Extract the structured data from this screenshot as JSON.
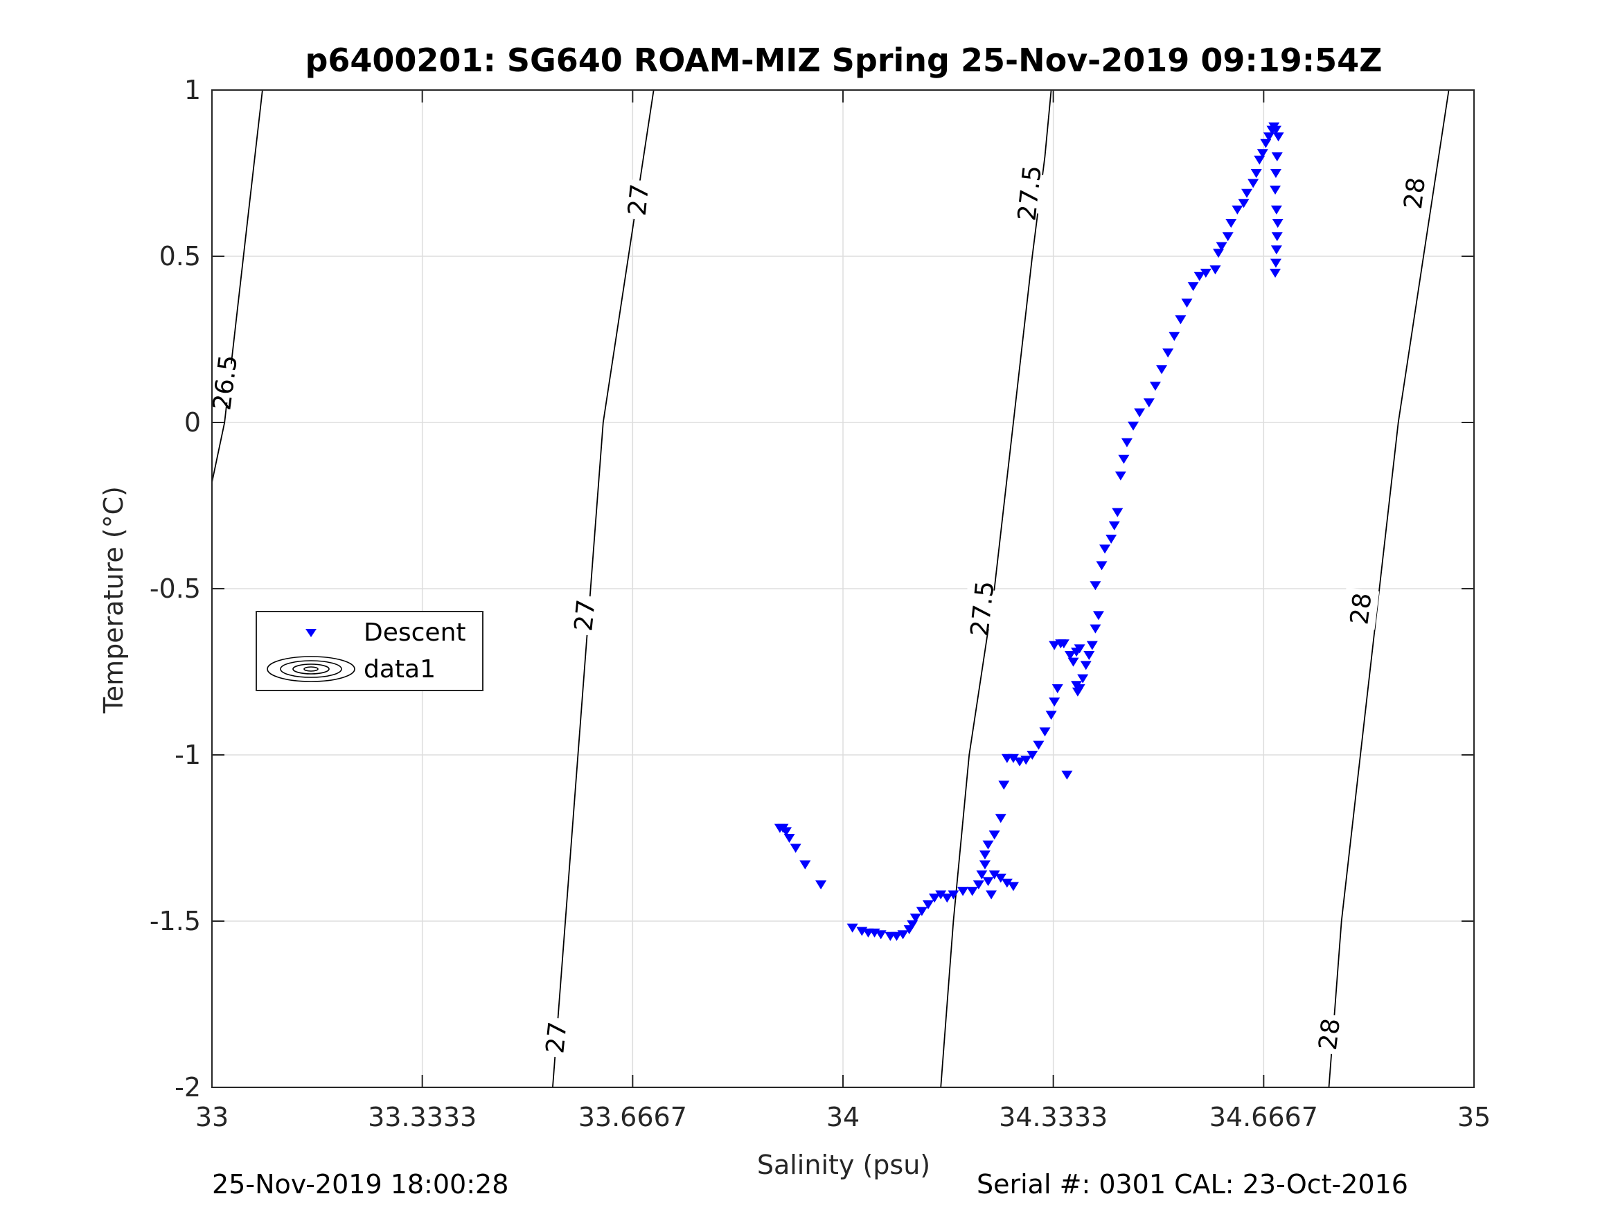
{
  "chart_data": {
    "type": "scatter",
    "title": "p6400201: SG640 ROAM-MIZ Spring 25-Nov-2019 09:19:54Z",
    "xlabel": "Salinity (psu)",
    "ylabel": "Temperature (°C)",
    "xlim": [
      33,
      35
    ],
    "ylim": [
      -2,
      1
    ],
    "x_tick_labels": [
      "33",
      "33.3333",
      "33.6667",
      "34",
      "34.3333",
      "34.6667",
      "35"
    ],
    "y_tick_labels": [
      "-2",
      "-1.5",
      "-1",
      "-0.5",
      "0",
      "0.5",
      "1"
    ],
    "grid": true,
    "legend": {
      "placement": "left-middle",
      "entries": [
        "Descent",
        "data1"
      ]
    },
    "colors": {
      "descent": "#0000ff",
      "contour": "#000000",
      "grid": "#dddddd",
      "axis": "#262626"
    },
    "contours": [
      {
        "level": "26.5",
        "points": [
          [
            33.0,
            -0.18
          ],
          [
            33.02,
            0.0
          ],
          [
            33.05,
            0.5
          ],
          [
            33.08,
            1.0
          ]
        ],
        "labels_at": [
          [
            33.02,
            0.12
          ]
        ]
      },
      {
        "level": "27",
        "points": [
          [
            33.54,
            -2.0
          ],
          [
            33.56,
            -1.5
          ],
          [
            33.58,
            -1.0
          ],
          [
            33.62,
            0.0
          ],
          [
            33.66,
            0.5
          ],
          [
            33.7,
            1.0
          ]
        ],
        "labels_at": [
          [
            33.545,
            -1.85
          ],
          [
            33.59,
            -0.58
          ],
          [
            33.675,
            0.67
          ]
        ]
      },
      {
        "level": "27.5",
        "points": [
          [
            34.155,
            -2.0
          ],
          [
            34.175,
            -1.5
          ],
          [
            34.2,
            -1.0
          ],
          [
            34.24,
            -0.5
          ],
          [
            34.27,
            0.0
          ],
          [
            34.3,
            0.5
          ],
          [
            34.32,
            0.8
          ],
          [
            34.33,
            1.0
          ]
        ],
        "labels_at": [
          [
            34.22,
            -0.56
          ],
          [
            34.295,
            0.69
          ]
        ]
      },
      {
        "level": "28",
        "points": [
          [
            34.77,
            -2.0
          ],
          [
            34.79,
            -1.5
          ],
          [
            34.82,
            -1.0
          ],
          [
            34.85,
            -0.5
          ],
          [
            34.88,
            0.0
          ],
          [
            34.92,
            0.5
          ],
          [
            34.96,
            1.0
          ]
        ],
        "labels_at": [
          [
            34.77,
            -1.84
          ],
          [
            34.82,
            -0.56
          ],
          [
            34.905,
            0.69
          ]
        ]
      }
    ],
    "series": [
      {
        "name": "Descent",
        "marker": "triangle-down",
        "points": [
          [
            33.9,
            -1.22
          ],
          [
            33.905,
            -1.22
          ],
          [
            33.91,
            -1.23
          ],
          [
            33.915,
            -1.25
          ],
          [
            33.925,
            -1.28
          ],
          [
            33.94,
            -1.33
          ],
          [
            33.965,
            -1.39
          ],
          [
            34.015,
            -1.52
          ],
          [
            34.03,
            -1.53
          ],
          [
            34.04,
            -1.535
          ],
          [
            34.05,
            -1.535
          ],
          [
            34.06,
            -1.54
          ],
          [
            34.075,
            -1.545
          ],
          [
            34.085,
            -1.545
          ],
          [
            34.095,
            -1.54
          ],
          [
            34.105,
            -1.525
          ],
          [
            34.11,
            -1.51
          ],
          [
            34.115,
            -1.49
          ],
          [
            34.125,
            -1.47
          ],
          [
            34.135,
            -1.45
          ],
          [
            34.145,
            -1.43
          ],
          [
            34.155,
            -1.42
          ],
          [
            34.165,
            -1.43
          ],
          [
            34.175,
            -1.42
          ],
          [
            34.19,
            -1.41
          ],
          [
            34.205,
            -1.41
          ],
          [
            34.215,
            -1.39
          ],
          [
            34.22,
            -1.36
          ],
          [
            34.225,
            -1.33
          ],
          [
            34.23,
            -1.38
          ],
          [
            34.235,
            -1.42
          ],
          [
            34.24,
            -1.36
          ],
          [
            34.25,
            -1.37
          ],
          [
            34.26,
            -1.385
          ],
          [
            34.27,
            -1.395
          ],
          [
            34.225,
            -1.3
          ],
          [
            34.23,
            -1.27
          ],
          [
            34.24,
            -1.24
          ],
          [
            34.25,
            -1.19
          ],
          [
            34.255,
            -1.09
          ],
          [
            34.26,
            -1.01
          ],
          [
            34.27,
            -1.01
          ],
          [
            34.28,
            -1.02
          ],
          [
            34.29,
            -1.015
          ],
          [
            34.3,
            -1.0
          ],
          [
            34.31,
            -0.97
          ],
          [
            34.32,
            -0.93
          ],
          [
            34.33,
            -0.88
          ],
          [
            34.335,
            -0.84
          ],
          [
            34.34,
            -0.8
          ],
          [
            34.335,
            -0.67
          ],
          [
            34.345,
            -0.665
          ],
          [
            34.35,
            -0.665
          ],
          [
            34.355,
            -1.06
          ],
          [
            34.36,
            -0.7
          ],
          [
            34.365,
            -0.72
          ],
          [
            34.37,
            -0.69
          ],
          [
            34.375,
            -0.68
          ],
          [
            34.37,
            -0.79
          ],
          [
            34.372,
            -0.81
          ],
          [
            34.375,
            -0.8
          ],
          [
            34.38,
            -0.77
          ],
          [
            34.385,
            -0.73
          ],
          [
            34.39,
            -0.7
          ],
          [
            34.395,
            -0.67
          ],
          [
            34.4,
            -0.62
          ],
          [
            34.405,
            -0.58
          ],
          [
            34.4,
            -0.49
          ],
          [
            34.41,
            -0.43
          ],
          [
            34.415,
            -0.38
          ],
          [
            34.425,
            -0.35
          ],
          [
            34.43,
            -0.31
          ],
          [
            34.435,
            -0.27
          ],
          [
            34.44,
            -0.16
          ],
          [
            34.445,
            -0.11
          ],
          [
            34.45,
            -0.06
          ],
          [
            34.46,
            -0.01
          ],
          [
            34.47,
            0.03
          ],
          [
            34.485,
            0.06
          ],
          [
            34.495,
            0.11
          ],
          [
            34.505,
            0.16
          ],
          [
            34.515,
            0.21
          ],
          [
            34.525,
            0.26
          ],
          [
            34.535,
            0.31
          ],
          [
            34.545,
            0.36
          ],
          [
            34.555,
            0.41
          ],
          [
            34.565,
            0.44
          ],
          [
            34.575,
            0.45
          ],
          [
            34.59,
            0.46
          ],
          [
            34.595,
            0.51
          ],
          [
            34.6,
            0.53
          ],
          [
            34.61,
            0.56
          ],
          [
            34.615,
            0.6
          ],
          [
            34.625,
            0.64
          ],
          [
            34.635,
            0.66
          ],
          [
            34.64,
            0.69
          ],
          [
            34.65,
            0.72
          ],
          [
            34.655,
            0.75
          ],
          [
            34.66,
            0.79
          ],
          [
            34.665,
            0.81
          ],
          [
            34.67,
            0.84
          ],
          [
            34.675,
            0.86
          ],
          [
            34.68,
            0.88
          ],
          [
            34.683,
            0.89
          ],
          [
            34.686,
            0.88
          ],
          [
            34.69,
            0.86
          ],
          [
            34.688,
            0.8
          ],
          [
            34.686,
            0.75
          ],
          [
            34.685,
            0.7
          ],
          [
            34.687,
            0.64
          ],
          [
            34.689,
            0.6
          ],
          [
            34.688,
            0.56
          ],
          [
            34.687,
            0.52
          ],
          [
            34.686,
            0.48
          ],
          [
            34.685,
            0.45
          ]
        ]
      }
    ]
  },
  "footer": {
    "left": "25-Nov-2019 18:00:28",
    "right": "Serial #: 0301  CAL: 23-Oct-2016"
  }
}
